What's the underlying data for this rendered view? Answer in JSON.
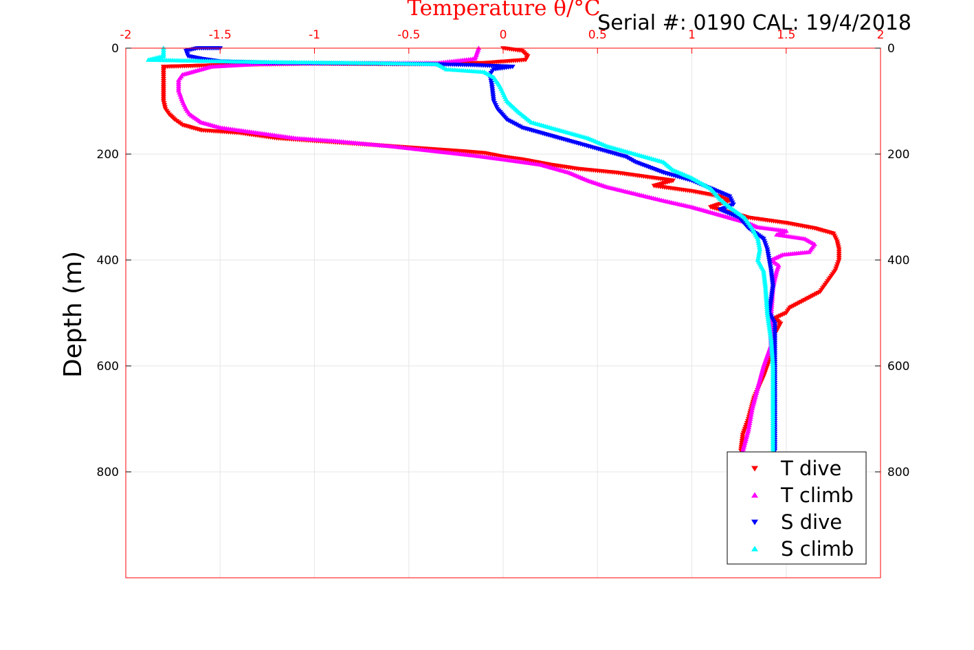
{
  "chart_data": {
    "type": "scatter",
    "title": "Temperature θ/°C",
    "serial_label": "Serial #: 0190  CAL: 19/4/2018",
    "ylabel": "Depth (m)",
    "xlim": [
      -2,
      2
    ],
    "ylim": [
      1000,
      0
    ],
    "y_reversed": true,
    "x_ticks": [
      "-2",
      "-1.5",
      "-1",
      "-0.5",
      "0",
      "0.5",
      "1",
      "1.5",
      "2"
    ],
    "x_tick_values": [
      -2,
      -1.5,
      -1,
      -0.5,
      0,
      0.5,
      1,
      1.5,
      2
    ],
    "y_ticks": [
      "0",
      "200",
      "400",
      "600",
      "800"
    ],
    "y_tick_values": [
      0,
      200,
      400,
      600,
      800
    ],
    "grid": true,
    "legend_position": "bottom-right",
    "series": [
      {
        "name": "T dive",
        "color": "#ff0000",
        "marker": "triangle-down",
        "points": [
          [
            0.0,
            0
          ],
          [
            0.1,
            5
          ],
          [
            0.13,
            15
          ],
          [
            0.12,
            22
          ],
          [
            -0.1,
            28
          ],
          [
            -0.5,
            30
          ],
          [
            -1.0,
            29
          ],
          [
            -1.5,
            32
          ],
          [
            -1.8,
            35
          ],
          [
            -1.8,
            50
          ],
          [
            -1.8,
            70
          ],
          [
            -1.8,
            100
          ],
          [
            -1.79,
            115
          ],
          [
            -1.77,
            125
          ],
          [
            -1.74,
            135
          ],
          [
            -1.7,
            145
          ],
          [
            -1.6,
            155
          ],
          [
            -1.4,
            160
          ],
          [
            -1.2,
            170
          ],
          [
            -1.0,
            175
          ],
          [
            -0.8,
            180
          ],
          [
            -0.6,
            185
          ],
          [
            -0.4,
            190
          ],
          [
            -0.2,
            195
          ],
          [
            -0.1,
            198
          ],
          [
            0.0,
            205
          ],
          [
            0.1,
            210
          ],
          [
            0.25,
            220
          ],
          [
            0.4,
            228
          ],
          [
            0.6,
            235
          ],
          [
            0.8,
            245
          ],
          [
            0.9,
            250
          ],
          [
            0.8,
            260
          ],
          [
            1.0,
            270
          ],
          [
            1.15,
            280
          ],
          [
            1.2,
            288
          ],
          [
            1.1,
            300
          ],
          [
            1.2,
            310
          ],
          [
            1.3,
            320
          ],
          [
            1.5,
            330
          ],
          [
            1.65,
            340
          ],
          [
            1.75,
            350
          ],
          [
            1.77,
            365
          ],
          [
            1.78,
            380
          ],
          [
            1.78,
            400
          ],
          [
            1.76,
            420
          ],
          [
            1.72,
            440
          ],
          [
            1.68,
            460
          ],
          [
            1.6,
            475
          ],
          [
            1.52,
            490
          ],
          [
            1.5,
            500
          ],
          [
            1.44,
            510
          ],
          [
            1.47,
            520
          ],
          [
            1.44,
            540
          ],
          [
            1.42,
            580
          ],
          [
            1.38,
            620
          ],
          [
            1.33,
            660
          ],
          [
            1.3,
            700
          ],
          [
            1.27,
            730
          ],
          [
            1.26,
            760
          ]
        ]
      },
      {
        "name": "T climb",
        "color": "#ff00ff",
        "marker": "triangle-up",
        "points": [
          [
            -0.13,
            0
          ],
          [
            -0.14,
            10
          ],
          [
            -0.15,
            20
          ],
          [
            -0.35,
            28
          ],
          [
            -0.9,
            28
          ],
          [
            -1.3,
            30
          ],
          [
            -1.55,
            35
          ],
          [
            -1.6,
            40
          ],
          [
            -1.7,
            50
          ],
          [
            -1.72,
            60
          ],
          [
            -1.72,
            80
          ],
          [
            -1.7,
            100
          ],
          [
            -1.68,
            115
          ],
          [
            -1.66,
            125
          ],
          [
            -1.6,
            140
          ],
          [
            -1.5,
            150
          ],
          [
            -1.3,
            160
          ],
          [
            -1.1,
            170
          ],
          [
            -0.9,
            175
          ],
          [
            -0.6,
            185
          ],
          [
            -0.4,
            193
          ],
          [
            -0.15,
            203
          ],
          [
            0.0,
            210
          ],
          [
            0.2,
            220
          ],
          [
            0.35,
            235
          ],
          [
            0.45,
            250
          ],
          [
            0.55,
            262
          ],
          [
            0.7,
            275
          ],
          [
            0.85,
            288
          ],
          [
            1.0,
            300
          ],
          [
            1.1,
            310
          ],
          [
            1.2,
            320
          ],
          [
            1.3,
            330
          ],
          [
            1.35,
            338
          ],
          [
            1.5,
            345
          ],
          [
            1.45,
            352
          ],
          [
            1.6,
            360
          ],
          [
            1.65,
            370
          ],
          [
            1.62,
            385
          ],
          [
            1.48,
            390
          ],
          [
            1.42,
            400
          ],
          [
            1.46,
            410
          ],
          [
            1.45,
            420
          ],
          [
            1.43,
            450
          ],
          [
            1.42,
            500
          ],
          [
            1.42,
            560
          ],
          [
            1.38,
            600
          ],
          [
            1.35,
            640
          ],
          [
            1.32,
            680
          ],
          [
            1.3,
            720
          ],
          [
            1.27,
            760
          ]
        ]
      },
      {
        "name": "S dive",
        "color": "#0000ff",
        "marker": "triangle-down",
        "points": [
          [
            -1.5,
            0
          ],
          [
            -1.62,
            0
          ],
          [
            -1.68,
            5
          ],
          [
            -1.67,
            15
          ],
          [
            -1.6,
            20
          ],
          [
            -1.5,
            25
          ],
          [
            -1.2,
            28
          ],
          [
            -0.8,
            29
          ],
          [
            -0.4,
            30
          ],
          [
            -0.15,
            32
          ],
          [
            0.05,
            35
          ],
          [
            -0.05,
            40
          ],
          [
            -0.07,
            50
          ],
          [
            -0.06,
            70
          ],
          [
            -0.05,
            100
          ],
          [
            -0.03,
            115
          ],
          [
            0.02,
            135
          ],
          [
            0.1,
            150
          ],
          [
            0.2,
            160
          ],
          [
            0.3,
            170
          ],
          [
            0.4,
            180
          ],
          [
            0.55,
            195
          ],
          [
            0.65,
            205
          ],
          [
            0.7,
            215
          ],
          [
            0.85,
            235
          ],
          [
            1.0,
            250
          ],
          [
            1.1,
            265
          ],
          [
            1.2,
            280
          ],
          [
            1.22,
            295
          ],
          [
            1.15,
            305
          ],
          [
            1.25,
            320
          ],
          [
            1.3,
            340
          ],
          [
            1.38,
            360
          ],
          [
            1.4,
            380
          ],
          [
            1.42,
            420
          ],
          [
            1.43,
            450
          ],
          [
            1.41,
            500
          ],
          [
            1.44,
            520
          ],
          [
            1.44,
            580
          ],
          [
            1.44,
            640
          ],
          [
            1.44,
            700
          ],
          [
            1.44,
            760
          ]
        ]
      },
      {
        "name": "S climb",
        "color": "#00ffff",
        "marker": "triangle-up",
        "points": [
          [
            -1.8,
            0
          ],
          [
            -1.8,
            8
          ],
          [
            -1.8,
            15
          ],
          [
            -1.88,
            22
          ],
          [
            -1.6,
            24
          ],
          [
            -1.3,
            26
          ],
          [
            -1.0,
            27
          ],
          [
            -0.7,
            28
          ],
          [
            -0.35,
            30
          ],
          [
            -0.3,
            40
          ],
          [
            -0.1,
            45
          ],
          [
            -0.05,
            55
          ],
          [
            -0.02,
            70
          ],
          [
            0.0,
            85
          ],
          [
            0.02,
            100
          ],
          [
            0.08,
            120
          ],
          [
            0.15,
            140
          ],
          [
            0.3,
            155
          ],
          [
            0.45,
            170
          ],
          [
            0.55,
            185
          ],
          [
            0.7,
            200
          ],
          [
            0.85,
            215
          ],
          [
            0.9,
            230
          ],
          [
            1.0,
            245
          ],
          [
            1.1,
            265
          ],
          [
            1.15,
            285
          ],
          [
            1.2,
            300
          ],
          [
            1.28,
            320
          ],
          [
            1.32,
            340
          ],
          [
            1.35,
            360
          ],
          [
            1.36,
            380
          ],
          [
            1.35,
            400
          ],
          [
            1.38,
            420
          ],
          [
            1.39,
            450
          ],
          [
            1.4,
            500
          ],
          [
            1.42,
            550
          ],
          [
            1.43,
            600
          ],
          [
            1.43,
            650
          ],
          [
            1.43,
            700
          ],
          [
            1.43,
            760
          ]
        ]
      }
    ]
  }
}
